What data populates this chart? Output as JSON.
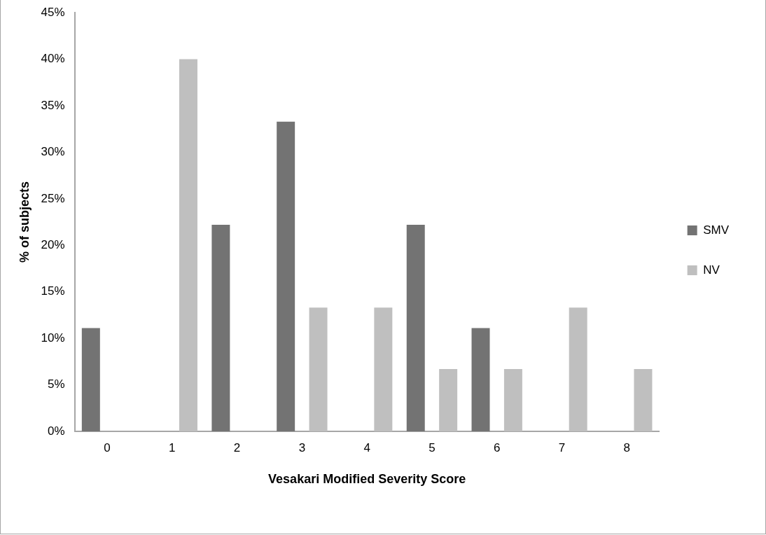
{
  "chart_data": {
    "type": "bar",
    "xlabel": "Vesakari Modified Severity Score",
    "ylabel": "% of subjects",
    "categories": [
      "0",
      "1",
      "2",
      "3",
      "4",
      "5",
      "6",
      "7",
      "8"
    ],
    "series": [
      {
        "name": "SMV",
        "color": "#737373",
        "values": [
          11.1,
          0,
          22.2,
          33.3,
          0,
          22.2,
          11.1,
          0,
          0
        ]
      },
      {
        "name": "NV",
        "color": "#bfbfbf",
        "values": [
          0,
          40,
          0,
          13.3,
          13.3,
          6.7,
          6.7,
          13.3,
          6.7
        ]
      }
    ],
    "ylim": [
      0,
      45
    ],
    "yticks": [
      {
        "value": 0,
        "label": "0%"
      },
      {
        "value": 5,
        "label": "5%"
      },
      {
        "value": 10,
        "label": "10%"
      },
      {
        "value": 15,
        "label": "15%"
      },
      {
        "value": 20,
        "label": "20%"
      },
      {
        "value": 25,
        "label": "25%"
      },
      {
        "value": 30,
        "label": "30%"
      },
      {
        "value": 35,
        "label": "35%"
      },
      {
        "value": 40,
        "label": "40%"
      },
      {
        "value": 45,
        "label": "45%"
      }
    ],
    "grid": false,
    "legend": "right"
  }
}
